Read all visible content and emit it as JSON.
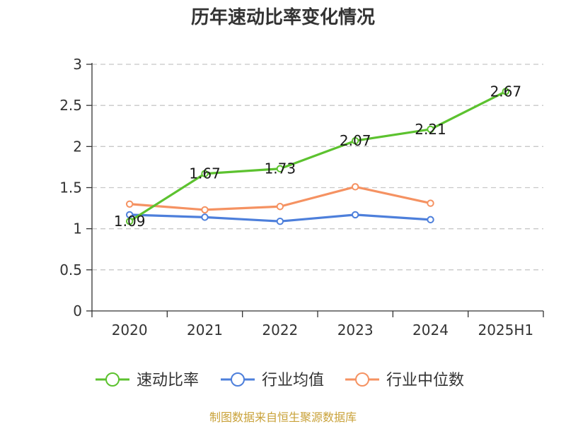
{
  "chart_data": {
    "type": "line",
    "title": "历年速动比率变化情况",
    "categories": [
      "2020",
      "2021",
      "2022",
      "2023",
      "2024",
      "2025H1"
    ],
    "ylim": [
      0,
      3
    ],
    "yticks": [
      "0",
      "0.5",
      "1",
      "1.5",
      "2",
      "2.5",
      "3"
    ],
    "ytick_values": [
      0,
      0.5,
      1,
      1.5,
      2,
      2.5,
      3
    ],
    "grid": true,
    "legend_position": "bottom-center",
    "series": [
      {
        "name": "速动比率",
        "color": "#5cc22f",
        "values": [
          1.09,
          1.67,
          1.73,
          2.07,
          2.21,
          2.67
        ],
        "labels": [
          "1.09",
          "1.67",
          "1.73",
          "2.07",
          "2.21",
          "2.67"
        ],
        "show_labels": true
      },
      {
        "name": "行业均值",
        "color": "#4d7fdb",
        "values": [
          1.17,
          1.14,
          1.09,
          1.17,
          1.11,
          null
        ],
        "show_labels": false
      },
      {
        "name": "行业中位数",
        "color": "#f59262",
        "values": [
          1.3,
          1.23,
          1.27,
          1.51,
          1.31,
          null
        ],
        "show_labels": false
      }
    ]
  },
  "source_text": "制图数据来自恒生聚源数据库"
}
